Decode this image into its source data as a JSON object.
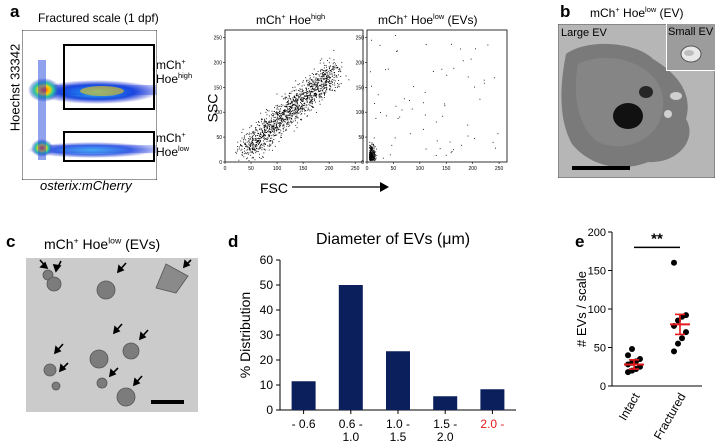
{
  "panel_letters": {
    "a": "a",
    "b": "b",
    "c": "c",
    "d": "d",
    "e": "e"
  },
  "panel_a": {
    "title": "Fractured scale (1 dpf)",
    "ylabel": "Hoechst 33342",
    "xlabel": "osterix:mCherry",
    "gate_high": {
      "prefix": "mCh",
      "sup1": "+",
      "line2": "Hoe",
      "sup2": "high"
    },
    "gate_low": {
      "prefix": "mCh",
      "sup1": "+",
      "line2": "Hoe",
      "sup2": "low"
    },
    "scatter_high_title": {
      "prefix": "mCh",
      "sup1": "+",
      "mid": " Hoe",
      "sup2": "high"
    },
    "scatter_low_title": {
      "prefix": "mCh",
      "sup1": "+",
      "mid": " Hoe",
      "sup2": "low",
      "suffix": " (EVs)"
    },
    "ylabel_ssc": "SSC",
    "xlabel_fsc": "FSC",
    "ssc_ticks": [
      "0",
      "50",
      "100",
      "150",
      "200",
      "250"
    ],
    "fsc_ticks": [
      "0",
      "50",
      "100",
      "150",
      "200",
      "250"
    ]
  },
  "panel_b": {
    "title": {
      "prefix": "mCh",
      "sup1": "+",
      "mid": " Hoe",
      "sup2": "low",
      "suffix": " (EV)"
    },
    "large_label": "Large EV",
    "small_label": "Small EV"
  },
  "panel_c": {
    "title": {
      "prefix": "mCh",
      "sup1": "+",
      "mid": " Hoe",
      "sup2": "low",
      "suffix": " (EVs)"
    }
  },
  "chart_data": [
    {
      "type": "bar",
      "title": "Diameter of EVs (μm)",
      "ylabel": "% Distribution",
      "xlabel": "",
      "categories": [
        [
          "- 0.6"
        ],
        [
          "0.6 -",
          "1.0"
        ],
        [
          "1.0 -",
          "1.5"
        ],
        [
          "1.5 -",
          "2.0"
        ],
        [
          "2.0 -"
        ]
      ],
      "values": [
        11.5,
        50,
        23.5,
        5.5,
        8.3
      ],
      "ylim": [
        0,
        60
      ],
      "yticks": [
        "0",
        "10",
        "20",
        "30",
        "40",
        "50",
        "60"
      ],
      "colors": [
        "#0b1f5c",
        "#0b1f5c",
        "#0b1f5c",
        "#0b1f5c",
        "#0b1f5c"
      ],
      "category_label_colors": [
        "#000000",
        "#000000",
        "#000000",
        "#000000",
        "#e41a1c"
      ]
    },
    {
      "type": "scatter",
      "title": "",
      "ylabel": "# EVs / scale",
      "categories": [
        "Intact",
        "Fractured"
      ],
      "ylim": [
        0,
        200
      ],
      "yticks": [
        "0",
        "50",
        "100",
        "150",
        "200"
      ],
      "significance": "**",
      "series": [
        {
          "values": [
            18,
            20,
            22,
            25,
            28,
            30,
            32,
            35,
            40,
            48
          ]
        },
        {
          "values": [
            45,
            55,
            62,
            70,
            78,
            85,
            90,
            92,
            160
          ]
        }
      ],
      "means": [
        28,
        80
      ],
      "error": [
        6,
        13
      ],
      "mean_color": "#e41a1c"
    }
  ]
}
